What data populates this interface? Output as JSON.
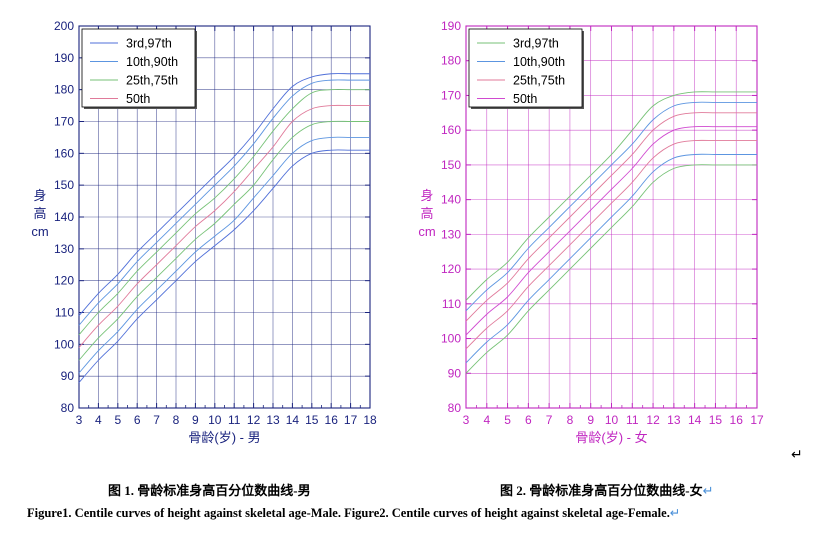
{
  "chart_data": [
    {
      "type": "line",
      "color": "#1a237e",
      "ylabel": "身\n高\ncm",
      "xlabel": "骨龄(岁) - 男",
      "xlim": [
        3,
        18
      ],
      "ylim": [
        80,
        200
      ],
      "xticks": [
        "3",
        "4",
        "5",
        "6",
        "7",
        "8",
        "9",
        "10",
        "11",
        "12",
        "13",
        "14",
        "15",
        "16",
        "17",
        "18"
      ],
      "yticks": [
        "80",
        "90",
        "100",
        "110",
        "120",
        "130",
        "140",
        "150",
        "160",
        "170",
        "180",
        "190",
        "200"
      ],
      "grid": true,
      "legend_position": "top-left",
      "legend": [
        {
          "label": "3rd,97th",
          "color": "#4f6fd8"
        },
        {
          "label": "10th,90th",
          "color": "#5c95e0"
        },
        {
          "label": "25th,75th",
          "color": "#77c277"
        },
        {
          "label": "50th",
          "color": "#e07a9a"
        }
      ],
      "x": [
        3,
        4,
        5,
        6,
        7,
        8,
        9,
        10,
        11,
        12,
        13,
        14,
        15,
        16,
        17,
        18
      ],
      "series": [
        {
          "values": [
            88,
            95,
            101,
            108,
            114,
            120,
            126,
            131,
            136,
            142,
            149,
            156,
            160,
            161,
            161,
            161
          ]
        },
        {
          "values": [
            91,
            98,
            104,
            111,
            117,
            123,
            129,
            134,
            139,
            146,
            153,
            160,
            164,
            165,
            165,
            165
          ]
        },
        {
          "values": [
            95,
            102,
            108,
            115,
            121,
            127,
            133,
            138,
            144,
            150,
            158,
            165,
            169,
            170,
            170,
            170
          ]
        },
        {
          "values": [
            99,
            106,
            112,
            119,
            125,
            131,
            137,
            142,
            148,
            155,
            162,
            170,
            174,
            175,
            175,
            175
          ]
        },
        {
          "values": [
            103,
            110,
            116,
            123,
            129,
            135,
            141,
            146,
            152,
            159,
            167,
            174,
            179,
            180,
            180,
            180
          ]
        },
        {
          "values": [
            106,
            113,
            119,
            126,
            132,
            138,
            144,
            150,
            156,
            163,
            171,
            178,
            182,
            183,
            183,
            183
          ]
        },
        {
          "values": [
            109,
            116,
            122,
            129,
            135,
            141,
            147,
            153,
            159,
            166,
            174,
            181,
            184,
            185,
            185,
            185
          ]
        }
      ]
    },
    {
      "type": "line",
      "color": "#c026c0",
      "ylabel": "身\n高\ncm",
      "xlabel": "骨龄(岁) - 女",
      "xlim": [
        3,
        17
      ],
      "ylim": [
        80,
        190
      ],
      "xticks": [
        "3",
        "4",
        "5",
        "6",
        "7",
        "8",
        "9",
        "10",
        "11",
        "12",
        "13",
        "14",
        "15",
        "16",
        "17"
      ],
      "yticks": [
        "80",
        "90",
        "100",
        "110",
        "120",
        "130",
        "140",
        "150",
        "160",
        "170",
        "180",
        "190"
      ],
      "grid": true,
      "legend_position": "top-left",
      "legend": [
        {
          "label": "3rd,97th",
          "color": "#77c277"
        },
        {
          "label": "10th,90th",
          "color": "#5c95e0"
        },
        {
          "label": "25th,75th",
          "color": "#e07a9a"
        },
        {
          "label": "50th",
          "color": "#d04ad0"
        }
      ],
      "x": [
        3,
        4,
        5,
        6,
        7,
        8,
        9,
        10,
        11,
        12,
        13,
        14,
        15,
        16,
        17
      ],
      "series": [
        {
          "values": [
            90,
            96,
            101,
            108,
            114,
            120,
            126,
            132,
            138,
            145,
            149,
            150,
            150,
            150,
            150
          ]
        },
        {
          "values": [
            93,
            99,
            104,
            111,
            117,
            123,
            129,
            135,
            141,
            148,
            152,
            153,
            153,
            153,
            153
          ]
        },
        {
          "values": [
            97,
            103,
            108,
            115,
            121,
            127,
            133,
            139,
            145,
            152,
            156,
            157,
            157,
            157,
            157
          ]
        },
        {
          "values": [
            101,
            107,
            112,
            119,
            125,
            131,
            137,
            143,
            149,
            156,
            160,
            161,
            161,
            161,
            161
          ]
        },
        {
          "values": [
            105,
            111,
            116,
            123,
            129,
            135,
            141,
            147,
            153,
            160,
            164,
            165,
            165,
            165,
            165
          ]
        },
        {
          "values": [
            108,
            114,
            119,
            126,
            132,
            138,
            144,
            150,
            156,
            163,
            167,
            168,
            168,
            168,
            168
          ]
        },
        {
          "values": [
            111,
            117,
            122,
            129,
            135,
            141,
            147,
            153,
            160,
            167,
            170,
            171,
            171,
            171,
            171
          ]
        }
      ]
    }
  ],
  "captions": {
    "male": "图 1.  骨龄标准身高百分位数曲线-男",
    "female": "图 2.  骨龄标准身高百分位数曲线-女",
    "english": "Figure1. Centile curves of height against skeletal age-Male. Figure2. Centile curves of height against skeletal age-Female."
  },
  "return_mark": "↵"
}
